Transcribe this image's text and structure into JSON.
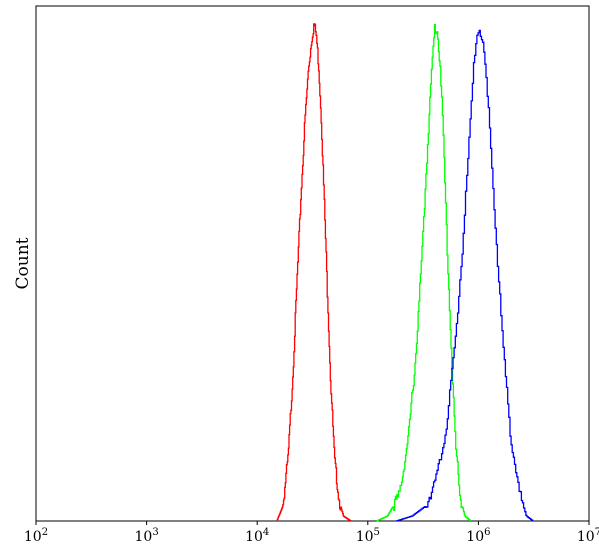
{
  "chart_data": {
    "type": "line",
    "title": "",
    "xlabel": "",
    "ylabel": "Count",
    "x_scale": "log",
    "xlim": [
      100,
      10000000
    ],
    "ylim": [
      0,
      1
    ],
    "grid": false,
    "legend": "none",
    "x_ticks": [
      {
        "base": "10",
        "exp": "2",
        "value": 100
      },
      {
        "base": "10",
        "exp": "3",
        "value": 1000
      },
      {
        "base": "10",
        "exp": "4",
        "value": 10000
      },
      {
        "base": "10",
        "exp": "5",
        "value": 100000
      },
      {
        "base": "10",
        "exp": "6",
        "value": 1000000
      },
      {
        "base": "10",
        "exp": "7",
        "value": 10000000
      }
    ],
    "series": [
      {
        "color": "#ff0000",
        "x": [
          15000,
          17000,
          19000,
          21000,
          23000,
          25000,
          27000,
          29000,
          31000,
          32500,
          34000,
          36000,
          38000,
          40000,
          43000,
          46000,
          50000,
          55000,
          60000,
          70000
        ],
        "y": [
          0.0,
          0.03,
          0.13,
          0.3,
          0.5,
          0.67,
          0.81,
          0.91,
          0.97,
          1.0,
          0.98,
          0.91,
          0.8,
          0.66,
          0.46,
          0.28,
          0.12,
          0.04,
          0.01,
          0.0
        ]
      },
      {
        "color": "#00ff00",
        "x": [
          120000,
          150000,
          190000,
          230000,
          270000,
          310000,
          350000,
          380000,
          400000,
          420000,
          450000,
          480000,
          520000,
          570000,
          620000,
          680000,
          750000,
          850000
        ],
        "y": [
          0.0,
          0.01,
          0.05,
          0.16,
          0.33,
          0.55,
          0.78,
          0.92,
          0.99,
          0.99,
          0.92,
          0.77,
          0.55,
          0.33,
          0.15,
          0.05,
          0.01,
          0.0
        ]
      },
      {
        "color": "#0000ff",
        "x": [
          180000,
          250000,
          330000,
          420000,
          520000,
          620000,
          720000,
          820000,
          900000,
          960000,
          1030000,
          1120000,
          1250000,
          1420000,
          1650000,
          1950000,
          2300000,
          2700000,
          3100000
        ],
        "y": [
          0.0,
          0.01,
          0.03,
          0.09,
          0.2,
          0.37,
          0.56,
          0.76,
          0.91,
          0.98,
          0.99,
          0.94,
          0.8,
          0.59,
          0.36,
          0.17,
          0.06,
          0.01,
          0.0
        ]
      }
    ]
  }
}
